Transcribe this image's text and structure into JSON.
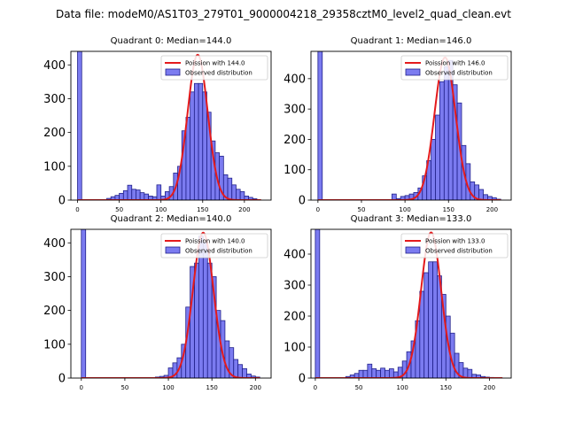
{
  "figure": {
    "suptitle": "Data file: modeM0/AS1T03_279T01_9000004218_29358cztM0_level2_quad_clean.evt"
  },
  "colors": {
    "bar_fill": "#7b7bf0",
    "bar_edge": "#20208a",
    "fit_line": "#e41a1c"
  },
  "chart_data": [
    {
      "type": "bar",
      "title": "Quadrant 0: Median=144.0",
      "xlabel": "",
      "ylabel": "",
      "xlim": [
        -8,
        232
      ],
      "ylim": [
        0,
        440
      ],
      "xticks": [
        0,
        50,
        100,
        150,
        200
      ],
      "yticks": [
        0,
        100,
        200,
        300,
        400
      ],
      "legend": [
        "Poission with 144.0",
        "Observed distribution"
      ],
      "legend_position": "top-right",
      "bin_width": 5,
      "bins": [
        [
          0,
          440
        ],
        [
          5,
          0
        ],
        [
          10,
          0
        ],
        [
          15,
          0
        ],
        [
          20,
          0
        ],
        [
          25,
          0
        ],
        [
          30,
          0
        ],
        [
          35,
          5
        ],
        [
          40,
          10
        ],
        [
          45,
          14
        ],
        [
          50,
          20
        ],
        [
          55,
          28
        ],
        [
          60,
          44
        ],
        [
          65,
          32
        ],
        [
          70,
          30
        ],
        [
          75,
          22
        ],
        [
          80,
          18
        ],
        [
          85,
          12
        ],
        [
          90,
          10
        ],
        [
          95,
          45
        ],
        [
          100,
          12
        ],
        [
          105,
          25
        ],
        [
          110,
          40
        ],
        [
          115,
          80
        ],
        [
          120,
          100
        ],
        [
          125,
          205
        ],
        [
          130,
          245
        ],
        [
          135,
          320
        ],
        [
          140,
          345
        ],
        [
          145,
          345
        ],
        [
          150,
          320
        ],
        [
          155,
          260
        ],
        [
          160,
          175
        ],
        [
          165,
          140
        ],
        [
          170,
          130
        ],
        [
          175,
          75
        ],
        [
          180,
          65
        ],
        [
          185,
          45
        ],
        [
          190,
          32
        ],
        [
          195,
          25
        ],
        [
          200,
          12
        ],
        [
          205,
          8
        ],
        [
          210,
          4
        ]
      ],
      "poisson": {
        "label": "Poission with 144.0",
        "mean": 144.0,
        "peak": 430,
        "x_range": [
          0,
          220
        ]
      }
    },
    {
      "type": "bar",
      "title": "Quadrant 1: Median=146.0",
      "xlabel": "",
      "ylabel": "",
      "xlim": [
        -8,
        222
      ],
      "ylim": [
        0,
        490
      ],
      "xticks": [
        0,
        50,
        100,
        150,
        200
      ],
      "yticks": [
        0,
        100,
        200,
        300,
        400
      ],
      "legend": [
        "Poission with 146.0",
        "Observed distribution"
      ],
      "legend_position": "top-right",
      "bin_width": 5,
      "bins": [
        [
          0,
          490
        ],
        [
          5,
          0
        ],
        [
          10,
          0
        ],
        [
          15,
          0
        ],
        [
          20,
          0
        ],
        [
          25,
          0
        ],
        [
          30,
          0
        ],
        [
          35,
          0
        ],
        [
          40,
          0
        ],
        [
          45,
          0
        ],
        [
          50,
          0
        ],
        [
          55,
          0
        ],
        [
          60,
          0
        ],
        [
          65,
          0
        ],
        [
          70,
          0
        ],
        [
          75,
          0
        ],
        [
          80,
          0
        ],
        [
          85,
          20
        ],
        [
          90,
          5
        ],
        [
          95,
          12
        ],
        [
          100,
          15
        ],
        [
          105,
          20
        ],
        [
          110,
          25
        ],
        [
          115,
          40
        ],
        [
          120,
          80
        ],
        [
          125,
          130
        ],
        [
          130,
          200
        ],
        [
          135,
          280
        ],
        [
          140,
          390
        ],
        [
          145,
          440
        ],
        [
          150,
          460
        ],
        [
          155,
          380
        ],
        [
          160,
          320
        ],
        [
          165,
          180
        ],
        [
          170,
          120
        ],
        [
          175,
          60
        ],
        [
          180,
          50
        ],
        [
          185,
          35
        ],
        [
          190,
          18
        ],
        [
          195,
          12
        ],
        [
          200,
          8
        ],
        [
          205,
          3
        ]
      ],
      "poisson": {
        "label": "Poission with 146.0",
        "mean": 146.0,
        "peak": 470,
        "x_range": [
          0,
          210
        ]
      }
    },
    {
      "type": "bar",
      "title": "Quadrant 2: Median=140.0",
      "xlabel": "",
      "ylabel": "",
      "xlim": [
        -12,
        218
      ],
      "ylim": [
        0,
        440
      ],
      "xticks": [
        0,
        50,
        100,
        150,
        200
      ],
      "yticks": [
        0,
        100,
        200,
        300,
        400
      ],
      "legend": [
        "Poission with 140.0",
        "Observed distribution"
      ],
      "legend_position": "top-right",
      "bin_width": 5,
      "bins": [
        [
          0,
          440
        ],
        [
          5,
          0
        ],
        [
          10,
          0
        ],
        [
          15,
          0
        ],
        [
          20,
          0
        ],
        [
          25,
          0
        ],
        [
          30,
          0
        ],
        [
          35,
          0
        ],
        [
          40,
          0
        ],
        [
          45,
          0
        ],
        [
          50,
          0
        ],
        [
          55,
          0
        ],
        [
          60,
          0
        ],
        [
          65,
          0
        ],
        [
          70,
          0
        ],
        [
          75,
          0
        ],
        [
          80,
          0
        ],
        [
          85,
          3
        ],
        [
          90,
          5
        ],
        [
          95,
          8
        ],
        [
          100,
          30
        ],
        [
          105,
          45
        ],
        [
          110,
          60
        ],
        [
          115,
          100
        ],
        [
          120,
          210
        ],
        [
          125,
          330
        ],
        [
          130,
          340
        ],
        [
          135,
          420
        ],
        [
          140,
          400
        ],
        [
          145,
          340
        ],
        [
          150,
          300
        ],
        [
          155,
          200
        ],
        [
          160,
          170
        ],
        [
          165,
          110
        ],
        [
          170,
          90
        ],
        [
          175,
          55
        ],
        [
          180,
          40
        ],
        [
          185,
          28
        ],
        [
          190,
          12
        ],
        [
          195,
          6
        ],
        [
          200,
          3
        ]
      ],
      "poisson": {
        "label": "Poission with 140.0",
        "mean": 140.0,
        "peak": 430,
        "x_range": [
          0,
          205
        ]
      }
    },
    {
      "type": "bar",
      "title": "Quadrant 3: Median=133.0",
      "xlabel": "",
      "ylabel": "",
      "xlim": [
        -5,
        225
      ],
      "ylim": [
        0,
        480
      ],
      "xticks": [
        0,
        50,
        100,
        150,
        200
      ],
      "yticks": [
        0,
        100,
        200,
        300,
        400
      ],
      "legend": [
        "Poission with 133.0",
        "Observed distribution"
      ],
      "legend_position": "top-right",
      "bin_width": 5,
      "bins": [
        [
          0,
          480
        ],
        [
          5,
          0
        ],
        [
          10,
          0
        ],
        [
          15,
          0
        ],
        [
          20,
          0
        ],
        [
          25,
          0
        ],
        [
          30,
          0
        ],
        [
          35,
          5
        ],
        [
          40,
          10
        ],
        [
          45,
          15
        ],
        [
          50,
          25
        ],
        [
          55,
          25
        ],
        [
          60,
          45
        ],
        [
          65,
          30
        ],
        [
          70,
          25
        ],
        [
          75,
          32
        ],
        [
          80,
          25
        ],
        [
          85,
          30
        ],
        [
          90,
          20
        ],
        [
          95,
          35
        ],
        [
          100,
          55
        ],
        [
          105,
          85
        ],
        [
          110,
          120
        ],
        [
          115,
          185
        ],
        [
          120,
          280
        ],
        [
          125,
          340
        ],
        [
          130,
          375
        ],
        [
          135,
          375
        ],
        [
          140,
          330
        ],
        [
          145,
          270
        ],
        [
          150,
          200
        ],
        [
          155,
          145
        ],
        [
          160,
          80
        ],
        [
          165,
          50
        ],
        [
          170,
          32
        ],
        [
          175,
          28
        ],
        [
          180,
          12
        ],
        [
          185,
          10
        ],
        [
          190,
          5
        ],
        [
          195,
          3
        ],
        [
          200,
          2
        ],
        [
          205,
          1
        ]
      ],
      "poisson": {
        "label": "Poission with 133.0",
        "mean": 133.0,
        "peak": 470,
        "x_range": [
          0,
          215
        ]
      }
    }
  ]
}
